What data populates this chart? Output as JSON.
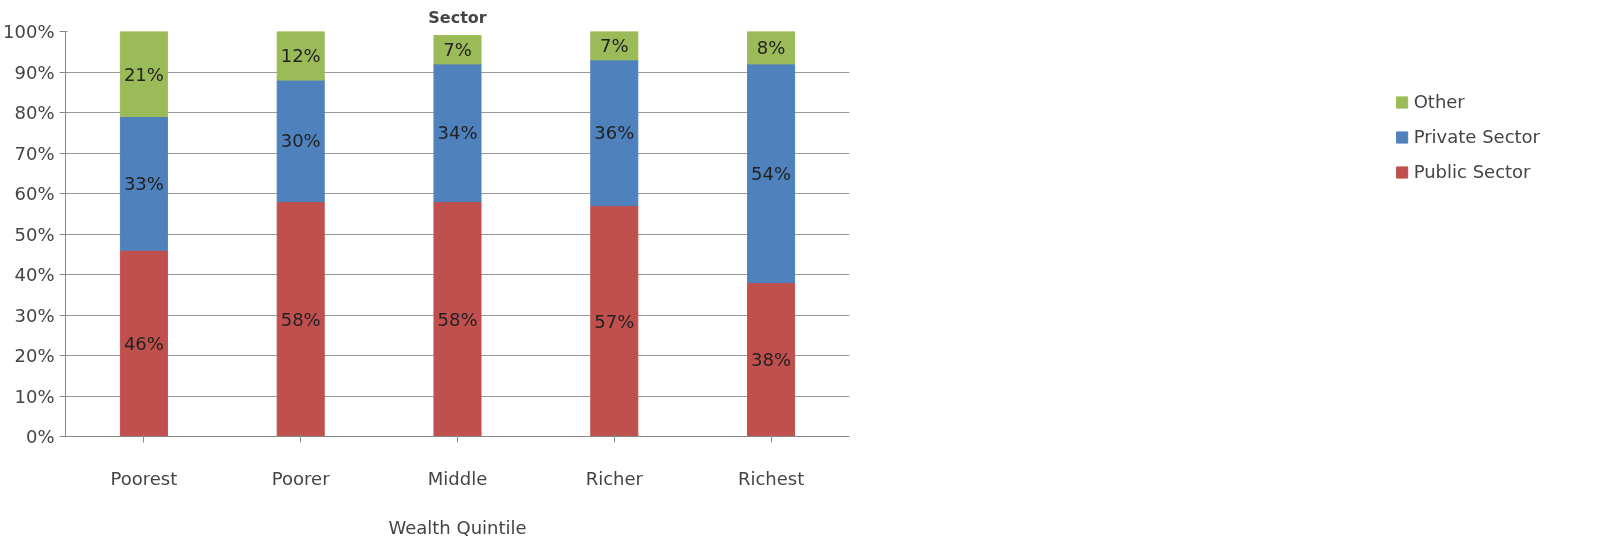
{
  "chart_data": {
    "type": "bar",
    "title": "Sector",
    "xlabel": "Wealth Quintile",
    "categories": [
      "Poorest",
      "Poorer",
      "Middle",
      "Richer",
      "Richest"
    ],
    "stacked": true,
    "series": [
      {
        "name": "Public Sector",
        "color": "#c0504d",
        "values": [
          46,
          58,
          58,
          57,
          38
        ],
        "value_labels": [
          "46%",
          "58%",
          "58%",
          "57%",
          "38%"
        ]
      },
      {
        "name": "Private Sector",
        "color": "#4f81bd",
        "values": [
          33,
          30,
          34,
          36,
          54
        ],
        "value_labels": [
          "33%",
          "30%",
          "34%",
          "36%",
          "54%"
        ]
      },
      {
        "name": "Other",
        "color": "#9bbb59",
        "values": [
          21,
          12,
          7,
          7,
          8
        ],
        "value_labels": [
          "21%",
          "12%",
          "7%",
          "7%",
          "8%"
        ]
      }
    ],
    "ylim": [
      0,
      100
    ],
    "yticks": [
      {
        "value": 0,
        "label": "0%"
      },
      {
        "value": 10,
        "label": "10%"
      },
      {
        "value": 20,
        "label": "20%"
      },
      {
        "value": 30,
        "label": "30%"
      },
      {
        "value": 40,
        "label": "40%"
      },
      {
        "value": 50,
        "label": "50%"
      },
      {
        "value": 60,
        "label": "60%"
      },
      {
        "value": 70,
        "label": "70%"
      },
      {
        "value": 80,
        "label": "80%"
      },
      {
        "value": 90,
        "label": "90%"
      },
      {
        "value": 100,
        "label": "100%"
      }
    ],
    "grid": "y",
    "legend": "right"
  }
}
